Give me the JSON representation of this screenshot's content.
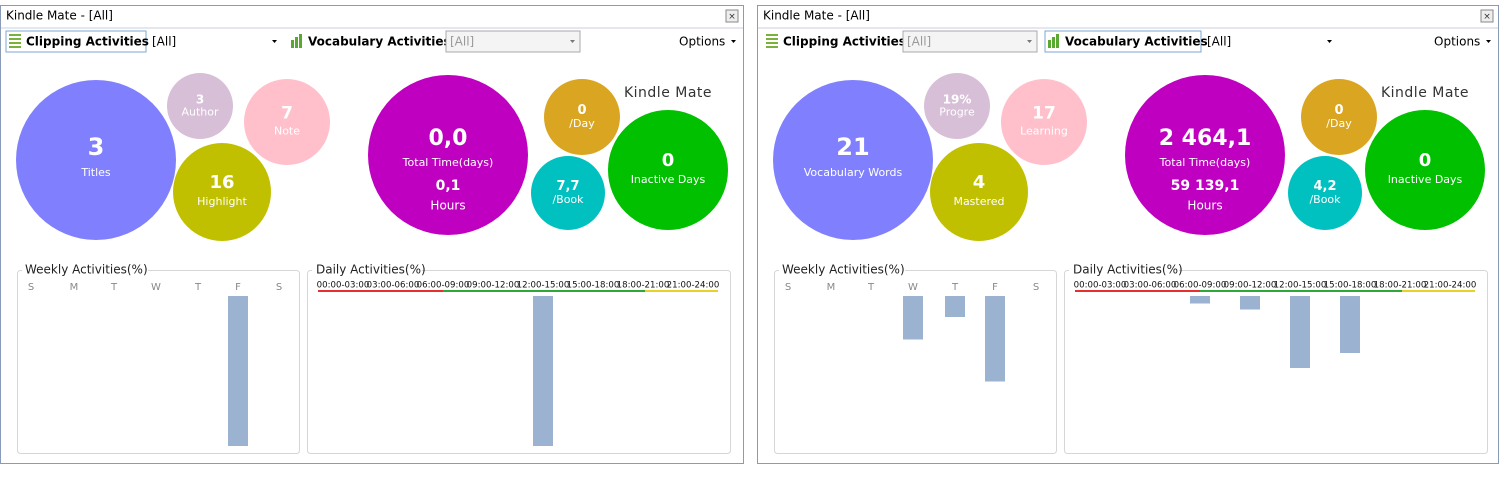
{
  "windows": [
    {
      "title": "Kindle Mate - [All]",
      "toolbar": {
        "clipping": "Clipping Activities",
        "clipping_filter": "[All]",
        "vocabulary": "Vocabulary Activities",
        "vocabulary_filter": "[All]",
        "options": "Options"
      },
      "bubbles": [
        {
          "value": "3",
          "label": "Titles"
        },
        {
          "value": "3",
          "label": "Author"
        },
        {
          "value": "7",
          "label": "Note"
        },
        {
          "value": "16",
          "label": "Highlight"
        },
        {
          "value": "0,0",
          "label": "Total Time(days)",
          "value2": "0,1",
          "label2": "Hours"
        },
        {
          "value": "0",
          "label": "/Day"
        },
        {
          "value": "7,7",
          "label": "/Book"
        },
        {
          "value": "0",
          "label": "Inactive Days"
        }
      ],
      "logo": "Kindle Mate",
      "weekly": {
        "title": "Weekly Activities(%)",
        "days": [
          "S",
          "M",
          "T",
          "W",
          "T",
          "F",
          "S"
        ],
        "values": [
          0,
          0,
          0,
          0,
          0,
          100,
          0
        ]
      },
      "daily": {
        "title": "Daily Activities(%)",
        "slots": [
          "00:00-03:00",
          "03:00-06:00",
          "06:00-09:00",
          "09:00-12:00",
          "12:00-15:00",
          "15:00-18:00",
          "18:00-21:00",
          "21:00-24:00"
        ],
        "values": [
          0,
          0,
          0,
          0,
          100,
          0,
          0,
          0
        ]
      }
    },
    {
      "title": "Kindle Mate - [All]",
      "toolbar": {
        "clipping": "Clipping Activities",
        "clipping_filter": "[All]",
        "vocabulary": "Vocabulary Activities",
        "vocabulary_filter": "[All]",
        "options": "Options"
      },
      "bubbles": [
        {
          "value": "21",
          "label": "Vocabulary Words"
        },
        {
          "value": "19%",
          "label": "Progre"
        },
        {
          "value": "17",
          "label": "Learning"
        },
        {
          "value": "4",
          "label": "Mastered"
        },
        {
          "value": "2 464,1",
          "label": "Total Time(days)",
          "value2": "59 139,1",
          "label2": "Hours"
        },
        {
          "value": "0",
          "label": "/Day"
        },
        {
          "value": "4,2",
          "label": "/Book"
        },
        {
          "value": "0",
          "label": "Inactive Days"
        }
      ],
      "logo": "Kindle Mate",
      "weekly": {
        "title": "Weekly Activities(%)",
        "days": [
          "S",
          "M",
          "T",
          "W",
          "T",
          "F",
          "S"
        ],
        "values": [
          0,
          0,
          0,
          29,
          14,
          57,
          0
        ]
      },
      "daily": {
        "title": "Daily Activities(%)",
        "slots": [
          "00:00-03:00",
          "03:00-06:00",
          "06:00-09:00",
          "09:00-12:00",
          "12:00-15:00",
          "15:00-18:00",
          "18:00-21:00",
          "21:00-24:00"
        ],
        "values": [
          0,
          0,
          5,
          9,
          48,
          38,
          0,
          0
        ]
      }
    }
  ]
}
